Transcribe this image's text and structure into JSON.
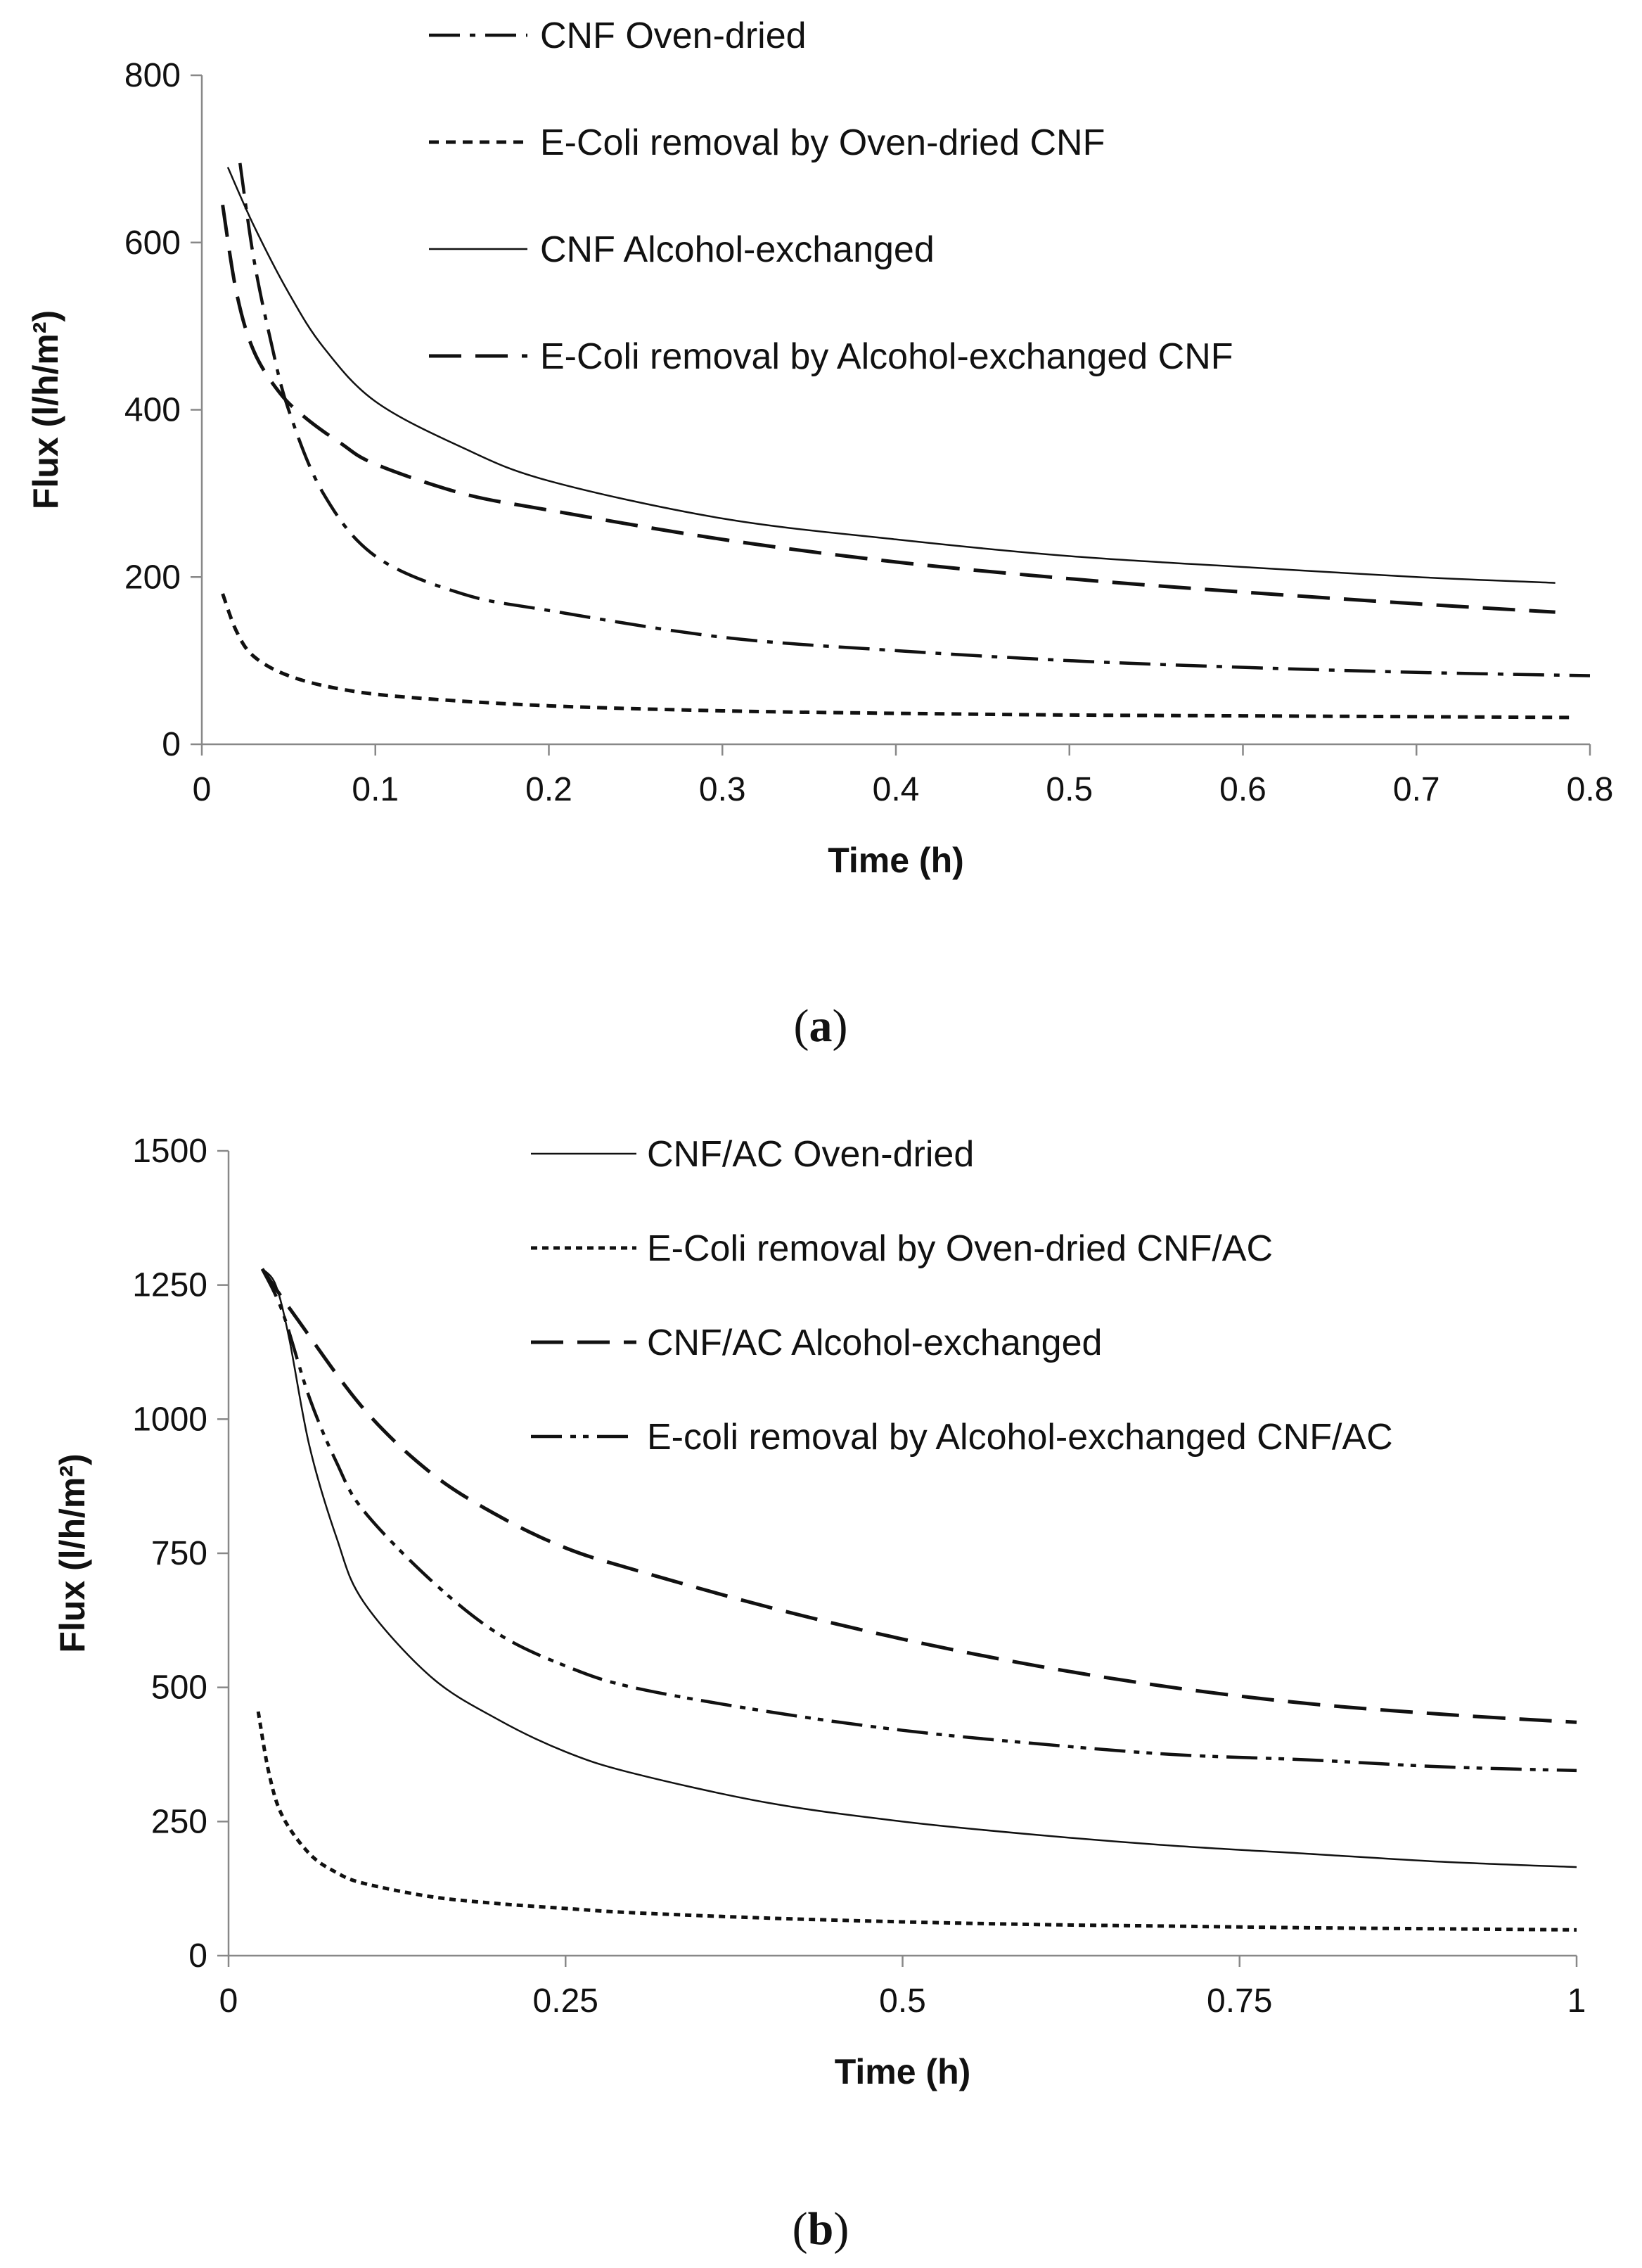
{
  "chart_data": [
    {
      "type": "line",
      "panel": "a",
      "xlabel": "Time (h)",
      "ylabel": "Flux (l/h/m²)",
      "xlim": [
        0,
        0.8
      ],
      "ylim": [
        0,
        800
      ],
      "xticks": [
        0,
        0.1,
        0.2,
        0.3,
        0.4,
        0.5,
        0.6,
        0.7,
        0.8
      ],
      "xtick_labels": [
        "0",
        "0.1",
        "0.2",
        "0.3",
        "0.4",
        "0.5",
        "0.6",
        "0.7",
        "0.8"
      ],
      "yticks": [
        0,
        200,
        400,
        600,
        800
      ],
      "ytick_labels": [
        "0",
        "200",
        "400",
        "600",
        "800"
      ],
      "grid": false,
      "legend_position": "top-right",
      "series": [
        {
          "name": "CNF Oven-dried",
          "style": "dashdot",
          "x": [
            0.022,
            0.03,
            0.04,
            0.05,
            0.07,
            0.1,
            0.15,
            0.2,
            0.3,
            0.4,
            0.5,
            0.6,
            0.7,
            0.8
          ],
          "y": [
            695,
            580,
            480,
            400,
            300,
            225,
            180,
            160,
            128,
            112,
            100,
            92,
            86,
            82
          ]
        },
        {
          "name": "E-Coli removal by Oven-dried CNF",
          "style": "dashed",
          "x": [
            0.012,
            0.02,
            0.03,
            0.05,
            0.08,
            0.12,
            0.2,
            0.3,
            0.4,
            0.5,
            0.6,
            0.7,
            0.79
          ],
          "y": [
            180,
            135,
            105,
            82,
            66,
            56,
            46,
            40,
            37,
            35,
            34,
            33,
            32
          ]
        },
        {
          "name": "CNF Alcohol-exchanged",
          "style": "solid",
          "x": [
            0.015,
            0.03,
            0.05,
            0.07,
            0.1,
            0.15,
            0.2,
            0.3,
            0.4,
            0.5,
            0.6,
            0.7,
            0.78
          ],
          "y": [
            690,
            620,
            540,
            475,
            410,
            355,
            315,
            270,
            245,
            225,
            212,
            200,
            193
          ]
        },
        {
          "name": "E-Coli removal by Alcohol-exchanged CNF",
          "style": "longdash",
          "x": [
            0.012,
            0.02,
            0.03,
            0.045,
            0.06,
            0.08,
            0.1,
            0.15,
            0.2,
            0.3,
            0.4,
            0.5,
            0.6,
            0.7,
            0.78
          ],
          "y": [
            645,
            540,
            470,
            420,
            390,
            360,
            335,
            300,
            280,
            245,
            218,
            198,
            182,
            168,
            158
          ]
        }
      ]
    },
    {
      "type": "line",
      "panel": "b",
      "xlabel": "Time (h)",
      "ylabel": "Flux (l/h/m²)",
      "xlim": [
        0,
        1
      ],
      "ylim": [
        0,
        1500
      ],
      "xticks": [
        0,
        0.25,
        0.5,
        0.75,
        1
      ],
      "xtick_labels": [
        "0",
        "0.25",
        "0.5",
        "0.75",
        "1"
      ],
      "yticks": [
        0,
        250,
        500,
        750,
        1000,
        1250,
        1500
      ],
      "ytick_labels": [
        "0",
        "250",
        "500",
        "750",
        "1000",
        "1250",
        "1500"
      ],
      "grid": false,
      "legend_position": "top-right",
      "series": [
        {
          "name": "CNF/AC Oven-dried",
          "style": "solid",
          "x": [
            0.025,
            0.035,
            0.045,
            0.06,
            0.08,
            0.1,
            0.15,
            0.2,
            0.25,
            0.3,
            0.4,
            0.5,
            0.6,
            0.7,
            0.8,
            0.9,
            1.0
          ],
          "y": [
            1280,
            1250,
            1150,
            950,
            780,
            660,
            520,
            440,
            380,
            340,
            285,
            250,
            225,
            205,
            190,
            175,
            165
          ]
        },
        {
          "name": "E-Coli removal by Oven-dried CNF/AC",
          "style": "dotted",
          "x": [
            0.022,
            0.03,
            0.04,
            0.06,
            0.08,
            0.1,
            0.15,
            0.2,
            0.25,
            0.3,
            0.4,
            0.5,
            0.6,
            0.7,
            0.8,
            0.9,
            1.0
          ],
          "y": [
            455,
            340,
            260,
            190,
            155,
            135,
            110,
            97,
            88,
            80,
            70,
            63,
            58,
            55,
            52,
            50,
            48
          ]
        },
        {
          "name": "CNF/AC Alcohol-exchanged",
          "style": "longdash",
          "x": [
            0.025,
            0.05,
            0.1,
            0.15,
            0.2,
            0.25,
            0.3,
            0.4,
            0.5,
            0.6,
            0.7,
            0.8,
            0.9,
            1.0
          ],
          "y": [
            1280,
            1190,
            1020,
            900,
            820,
            760,
            720,
            650,
            590,
            540,
            500,
            470,
            450,
            435
          ]
        },
        {
          "name": "E-coli removal by Alcohol-exchanged CNF/AC",
          "style": "dashdotdot",
          "x": [
            0.025,
            0.04,
            0.06,
            0.08,
            0.1,
            0.15,
            0.2,
            0.25,
            0.3,
            0.4,
            0.5,
            0.6,
            0.7,
            0.8,
            0.9,
            1.0
          ],
          "y": [
            1280,
            1200,
            1040,
            920,
            830,
            700,
            600,
            540,
            500,
            455,
            420,
            395,
            375,
            365,
            352,
            345
          ]
        }
      ]
    }
  ],
  "captions": {
    "a": "(a)",
    "b": "(b)"
  }
}
